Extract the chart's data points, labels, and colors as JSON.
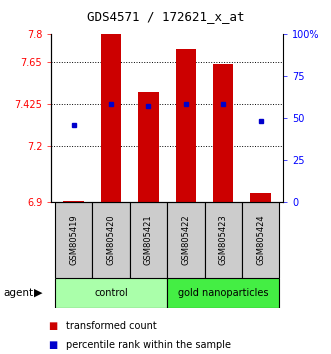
{
  "title": "GDS4571 / 172621_x_at",
  "samples": [
    "GSM805419",
    "GSM805420",
    "GSM805421",
    "GSM805422",
    "GSM805423",
    "GSM805424"
  ],
  "bar_values": [
    6.905,
    7.8,
    7.49,
    7.72,
    7.638,
    6.945
  ],
  "bar_baseline": 6.9,
  "blue_dots": [
    7.31,
    7.425,
    7.41,
    7.425,
    7.425,
    7.335
  ],
  "ylim_left": [
    6.9,
    7.8
  ],
  "ylim_right": [
    0,
    100
  ],
  "yticks_left": [
    6.9,
    7.2,
    7.425,
    7.65,
    7.8
  ],
  "ytick_labels_left": [
    "6.9",
    "7.2",
    "7.425",
    "7.65",
    "7.8"
  ],
  "yticks_right": [
    0,
    25,
    50,
    75,
    100
  ],
  "ytick_labels_right": [
    "0",
    "25",
    "50",
    "75",
    "100%"
  ],
  "bar_color": "#cc0000",
  "dot_color": "#0000cc",
  "groups": [
    {
      "label": "control",
      "indices": [
        0,
        1,
        2
      ],
      "color": "#aaffaa"
    },
    {
      "label": "gold nanoparticles",
      "indices": [
        3,
        4,
        5
      ],
      "color": "#44ee44"
    }
  ],
  "agent_label": "agent",
  "legend_items": [
    {
      "color": "#cc0000",
      "label": "transformed count"
    },
    {
      "color": "#0000cc",
      "label": "percentile rank within the sample"
    }
  ],
  "bar_width": 0.55,
  "sample_box_color": "#cccccc",
  "grid_linestyle": ":",
  "grid_linewidth": 0.7,
  "grid_color": "#000000"
}
